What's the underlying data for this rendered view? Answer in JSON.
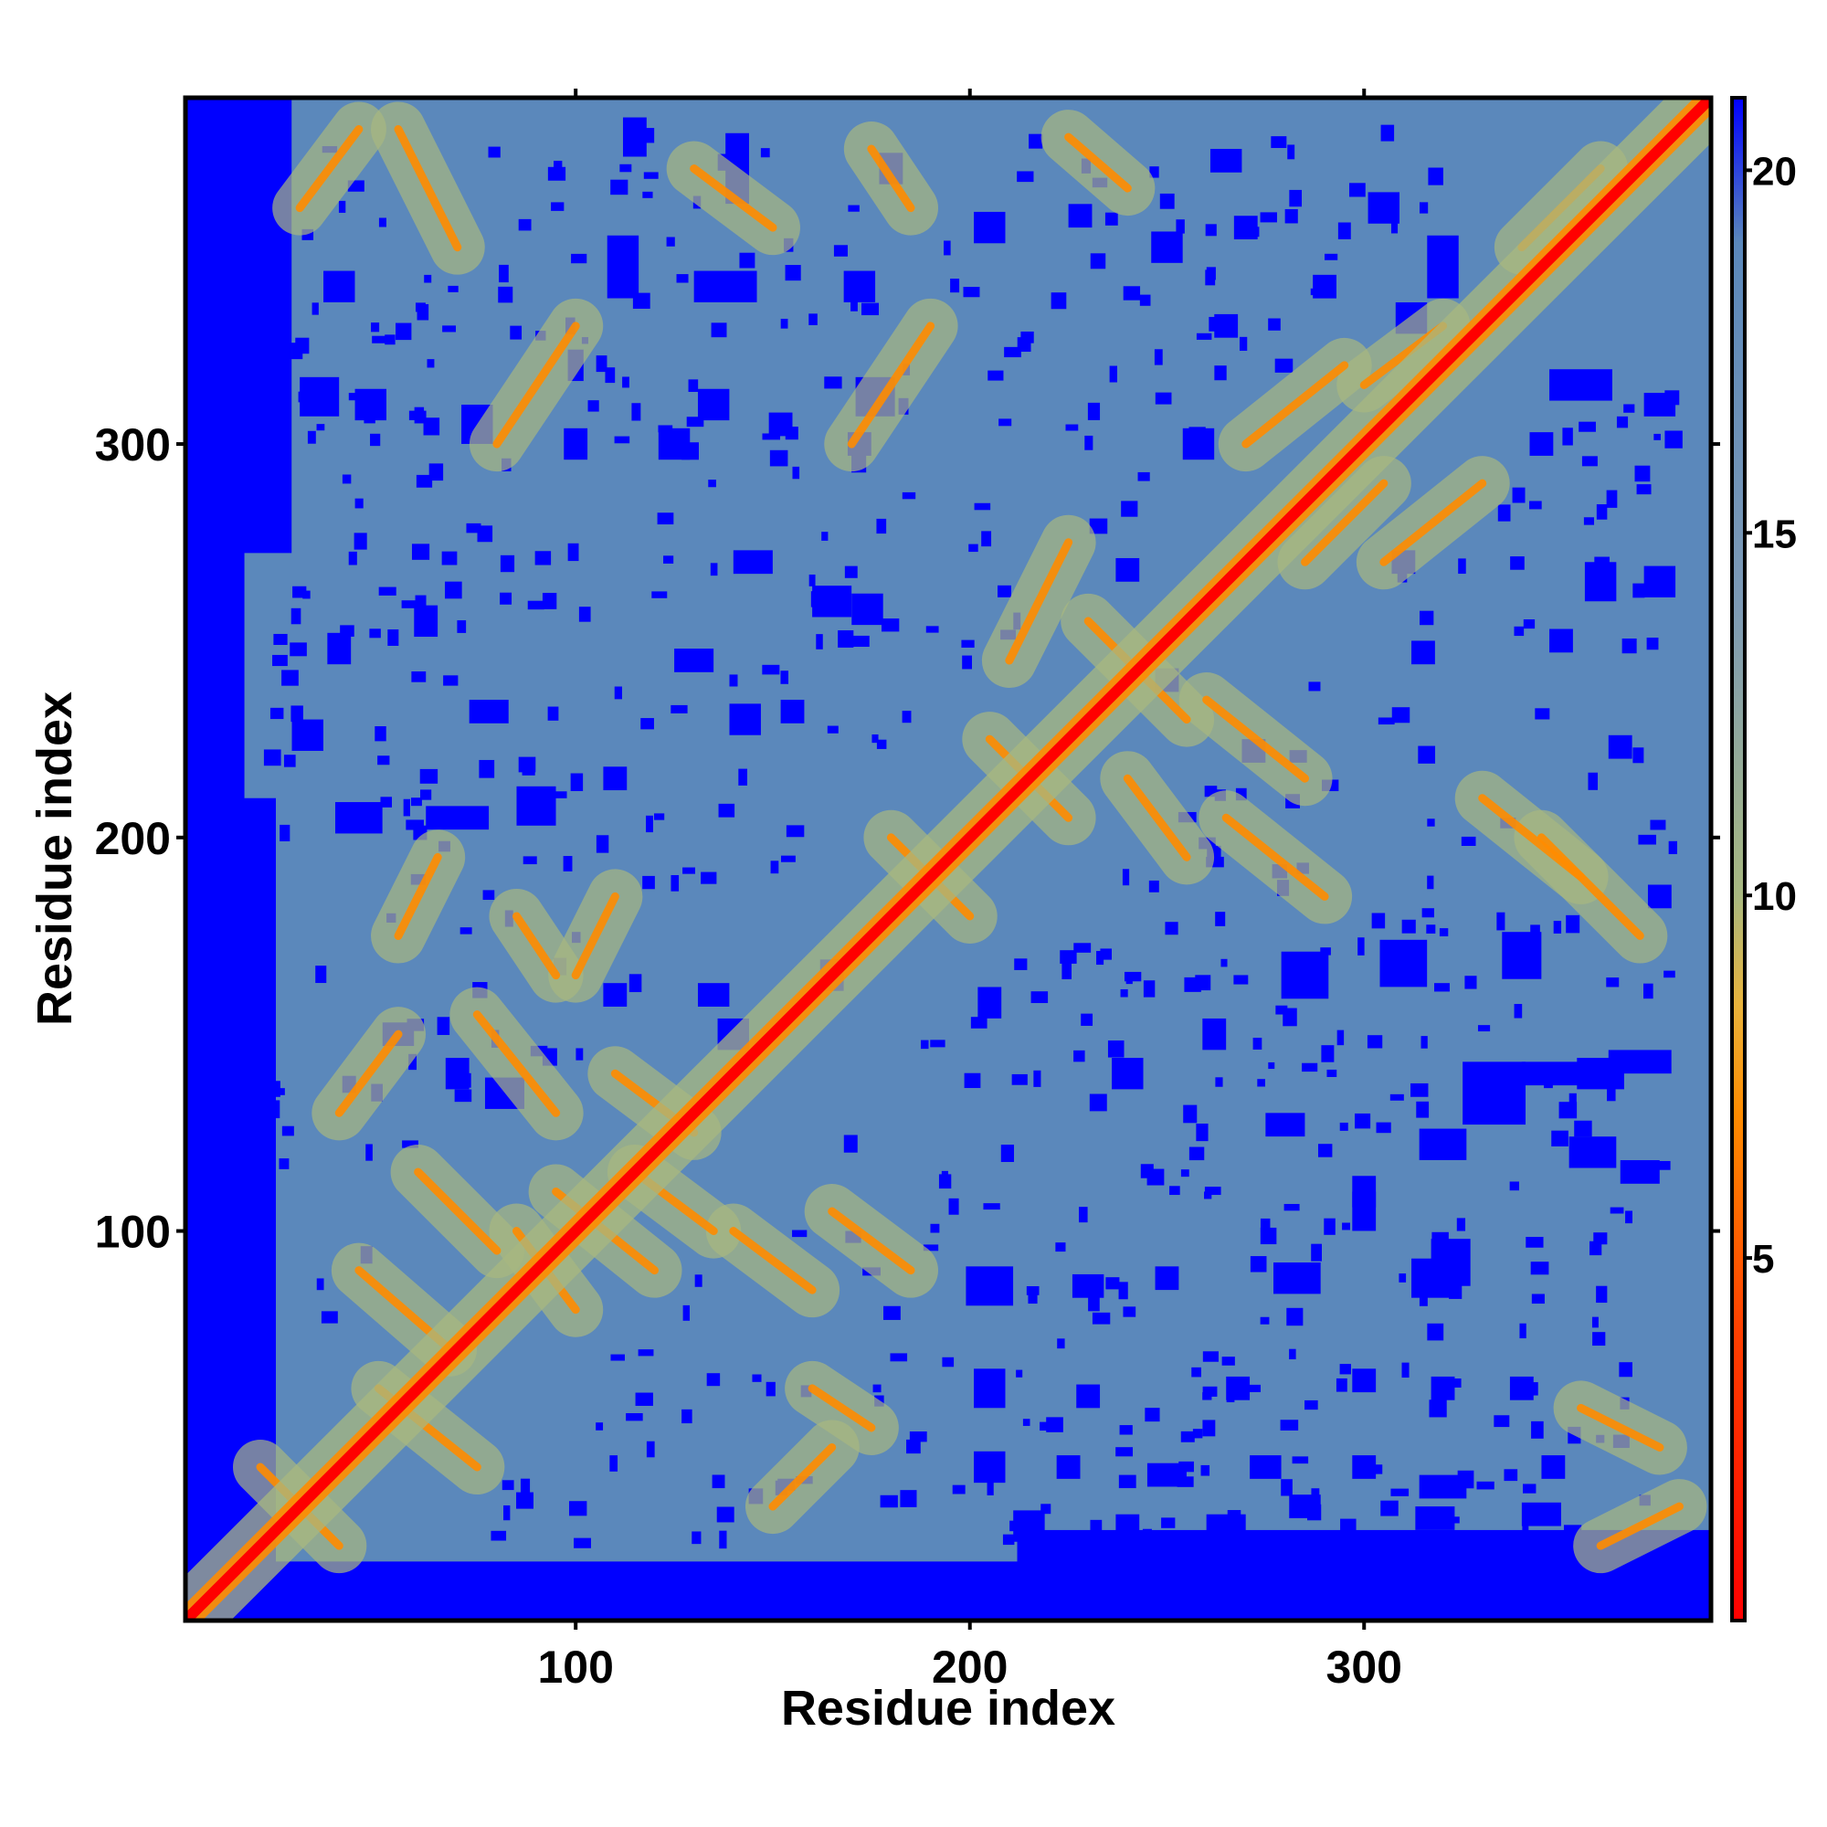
{
  "chart_data": {
    "type": "heatmap",
    "title": "",
    "xlabel": "Residue index",
    "ylabel": "Residue index",
    "xlim": [
      1,
      388
    ],
    "ylim": [
      1,
      388
    ],
    "x_ticks": [
      100,
      200,
      300
    ],
    "y_ticks": [
      100,
      200,
      300
    ],
    "colorbar": {
      "range": [
        0,
        21
      ],
      "ticks": [
        5,
        10,
        15,
        20
      ],
      "stops": [
        {
          "value": 0,
          "color": "#ff0000"
        },
        {
          "value": 4,
          "color": "#ff4000"
        },
        {
          "value": 7,
          "color": "#ff8c00"
        },
        {
          "value": 8.5,
          "color": "#e8b33c"
        },
        {
          "value": 10,
          "color": "#a8b880"
        },
        {
          "value": 14,
          "color": "#7d9ab5"
        },
        {
          "value": 19,
          "color": "#5b88bb"
        },
        {
          "value": 21,
          "color": "#0000ff"
        }
      ]
    },
    "colors": {
      "diagonal": "#ff0000",
      "contact": "#ff8c00",
      "near": "#a8b880",
      "background": "#5b88bb",
      "far": "#0000ff"
    }
  }
}
